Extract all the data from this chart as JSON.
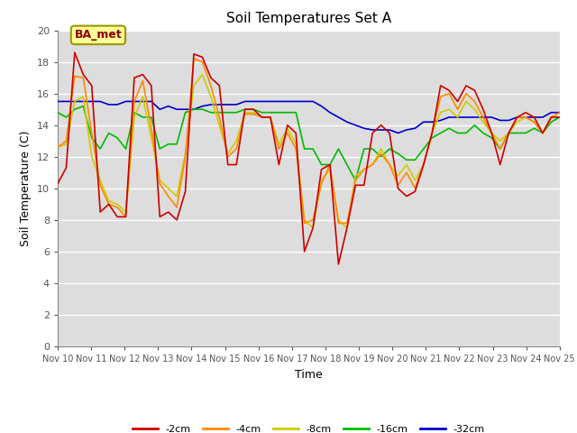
{
  "title": "Soil Temperatures Set A",
  "xlabel": "Time",
  "ylabel": "Soil Temperature (C)",
  "annotation": "BA_met",
  "xlim": [
    0,
    15
  ],
  "ylim": [
    0,
    20
  ],
  "yticks": [
    0,
    2,
    4,
    6,
    8,
    10,
    12,
    14,
    16,
    18,
    20
  ],
  "xtick_labels": [
    "Nov 10",
    "Nov 11",
    "Nov 12",
    "Nov 13",
    "Nov 14",
    "Nov 15",
    "Nov 16",
    "Nov 17",
    "Nov 18",
    "Nov 19",
    "Nov 20",
    "Nov 21",
    "Nov 22",
    "Nov 23",
    "Nov 24",
    "Nov 25"
  ],
  "figure_bg_color": "#ffffff",
  "plot_bg_color": "#dddddd",
  "grid_color": "#ffffff",
  "colors": {
    "-2cm": "#cc0000",
    "-4cm": "#ff8800",
    "-8cm": "#cccc00",
    "-16cm": "#00bb00",
    "-32cm": "#0000cc"
  },
  "series": {
    "-2cm": [
      10.3,
      11.3,
      18.6,
      17.2,
      16.5,
      8.5,
      9.0,
      8.2,
      8.2,
      17.0,
      17.2,
      16.5,
      8.2,
      8.5,
      8.0,
      9.8,
      18.5,
      18.3,
      17.0,
      16.5,
      11.5,
      11.5,
      15.0,
      15.0,
      14.5,
      14.5,
      11.5,
      14.0,
      13.5,
      6.0,
      7.5,
      11.2,
      11.5,
      5.2,
      7.5,
      10.2,
      10.2,
      13.5,
      14.0,
      13.5,
      10.0,
      9.5,
      9.8,
      11.5,
      13.5,
      16.5,
      16.2,
      15.5,
      16.5,
      16.2,
      15.0,
      13.5,
      11.5,
      13.5,
      14.5,
      14.8,
      14.5,
      13.5,
      14.5,
      14.5
    ],
    "-4cm": [
      12.6,
      13.0,
      17.1,
      17.0,
      13.5,
      10.2,
      9.0,
      8.8,
      8.2,
      15.5,
      16.8,
      13.8,
      10.3,
      9.5,
      8.8,
      12.0,
      18.2,
      18.0,
      16.5,
      14.5,
      12.0,
      12.5,
      14.7,
      14.7,
      14.5,
      14.5,
      12.5,
      13.5,
      12.5,
      7.8,
      8.0,
      10.3,
      11.5,
      7.8,
      7.8,
      10.5,
      11.2,
      11.5,
      12.2,
      11.5,
      10.2,
      11.0,
      10.0,
      11.5,
      13.5,
      15.8,
      16.0,
      15.0,
      16.0,
      15.5,
      14.5,
      13.5,
      12.5,
      13.5,
      14.5,
      14.5,
      14.2,
      13.5,
      14.5,
      14.8
    ],
    "-8cm": [
      12.6,
      12.8,
      15.5,
      15.8,
      12.0,
      10.5,
      9.2,
      9.0,
      8.5,
      14.5,
      15.8,
      13.2,
      10.5,
      10.0,
      9.5,
      12.2,
      16.5,
      17.2,
      15.8,
      14.0,
      12.2,
      13.0,
      14.8,
      14.8,
      14.5,
      14.5,
      12.8,
      13.8,
      12.8,
      8.0,
      7.5,
      10.5,
      11.2,
      8.0,
      7.5,
      10.8,
      11.2,
      11.5,
      12.5,
      11.5,
      10.8,
      11.5,
      10.5,
      11.5,
      13.5,
      14.8,
      15.0,
      14.5,
      15.5,
      15.0,
      14.2,
      13.5,
      13.0,
      13.5,
      14.2,
      14.5,
      14.2,
      13.5,
      14.5,
      14.5
    ],
    "-16cm": [
      14.8,
      14.5,
      15.0,
      15.2,
      13.2,
      12.5,
      13.5,
      13.2,
      12.5,
      14.8,
      14.5,
      14.5,
      12.5,
      12.8,
      12.8,
      14.8,
      15.0,
      15.0,
      14.8,
      14.8,
      14.8,
      14.8,
      15.0,
      15.0,
      14.8,
      14.8,
      14.8,
      14.8,
      14.8,
      12.5,
      12.5,
      11.5,
      11.5,
      12.5,
      11.5,
      10.5,
      12.5,
      12.5,
      12.0,
      12.5,
      12.2,
      11.8,
      11.8,
      12.5,
      13.2,
      13.5,
      13.8,
      13.5,
      13.5,
      14.0,
      13.5,
      13.2,
      12.5,
      13.5,
      13.5,
      13.5,
      13.8,
      13.5,
      14.2,
      14.5
    ],
    "-32cm": [
      15.5,
      15.5,
      15.5,
      15.5,
      15.5,
      15.5,
      15.3,
      15.3,
      15.5,
      15.5,
      15.5,
      15.5,
      15.0,
      15.2,
      15.0,
      15.0,
      15.0,
      15.2,
      15.3,
      15.3,
      15.3,
      15.3,
      15.5,
      15.5,
      15.5,
      15.5,
      15.5,
      15.5,
      15.5,
      15.5,
      15.5,
      15.2,
      14.8,
      14.5,
      14.2,
      14.0,
      13.8,
      13.7,
      13.7,
      13.7,
      13.5,
      13.7,
      13.8,
      14.2,
      14.2,
      14.3,
      14.5,
      14.5,
      14.5,
      14.5,
      14.5,
      14.5,
      14.3,
      14.3,
      14.5,
      14.5,
      14.5,
      14.5,
      14.8,
      14.8
    ]
  },
  "legend_entries": [
    "-2cm",
    "-4cm",
    "-8cm",
    "-16cm",
    "-32cm"
  ],
  "title_fontsize": 11,
  "axis_label_fontsize": 9,
  "tick_fontsize": 8,
  "xtick_fontsize": 7
}
